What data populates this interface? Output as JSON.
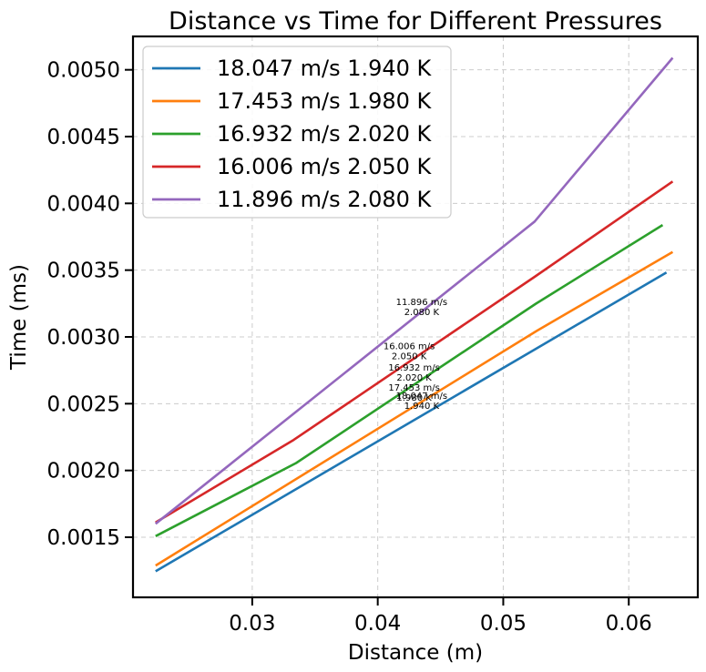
{
  "chart_data": {
    "type": "line",
    "title": "Distance vs Time for Different Pressures",
    "xlabel": "Distance (m)",
    "ylabel": "Time (ms)",
    "xlim": [
      0.0205,
      0.0655
    ],
    "ylim": [
      0.00105,
      0.00525
    ],
    "xticks": [
      0.03,
      0.04,
      0.05,
      0.06
    ],
    "xtick_labels": [
      "0.03",
      "0.04",
      "0.05",
      "0.06"
    ],
    "yticks": [
      0.0015,
      0.002,
      0.0025,
      0.003,
      0.0035,
      0.004,
      0.0045,
      0.005
    ],
    "ytick_labels": [
      "0.0015",
      "0.0020",
      "0.0025",
      "0.0030",
      "0.0035",
      "0.0040",
      "0.0045",
      "0.0050"
    ],
    "grid": true,
    "legend_position": "upper-left",
    "series": [
      {
        "name": "18.047 m/s 1.940 K",
        "color": "#1f77b4",
        "x": [
          0.0223,
          0.063
        ],
        "y": [
          0.001245,
          0.003483
        ],
        "annotation": [
          "18.047 m/s",
          "1.940 K"
        ],
        "annotation_at": [
          0.0435,
          0.00251
        ]
      },
      {
        "name": "17.453 m/s 1.980 K",
        "color": "#ff7f0e",
        "x": [
          0.0223,
          0.0527,
          0.0635
        ],
        "y": [
          0.001288,
          0.003047,
          0.003636
        ],
        "annotation": [
          "17.453 m/s",
          "1.980 K"
        ],
        "annotation_at": [
          0.0429,
          0.00257
        ]
      },
      {
        "name": "16.932 m/s 2.020 K",
        "color": "#2ca02c",
        "x": [
          0.0223,
          0.0335,
          0.0526,
          0.0627
        ],
        "y": [
          0.001508,
          0.002056,
          0.003249,
          0.003838
        ],
        "annotation": [
          "16.932 m/s",
          "2.020 K"
        ],
        "annotation_at": [
          0.0429,
          0.00272
        ]
      },
      {
        "name": "16.006 m/s 2.050 K",
        "color": "#d62728",
        "x": [
          0.0223,
          0.0333,
          0.0525,
          0.0635
        ],
        "y": [
          0.001611,
          0.002229,
          0.00345,
          0.004164
        ],
        "annotation": [
          "16.006 m/s",
          "2.050 K"
        ],
        "annotation_at": [
          0.0425,
          0.00288
        ]
      },
      {
        "name": "11.896 m/s 2.080 K",
        "color": "#9467bd",
        "x": [
          0.0223,
          0.0525,
          0.0635
        ],
        "y": [
          0.001601,
          0.003864,
          0.00509
        ],
        "annotation": [
          "11.896 m/s",
          "2.080 K"
        ],
        "annotation_at": [
          0.0435,
          0.00321
        ]
      }
    ]
  }
}
